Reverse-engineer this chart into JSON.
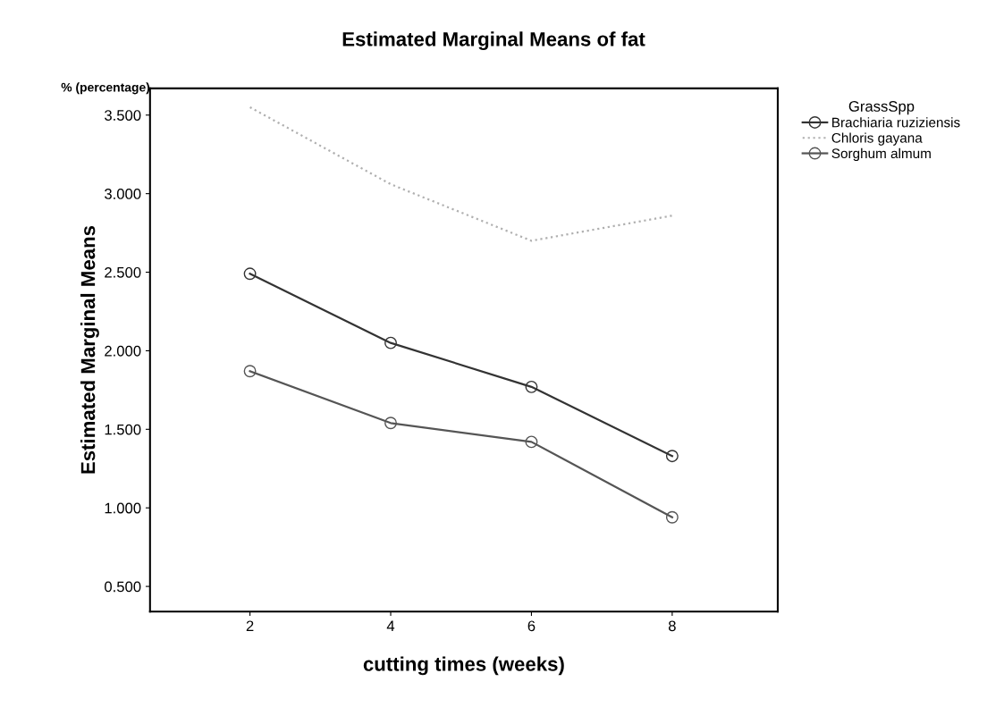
{
  "chart_data": {
    "type": "line",
    "title": "Estimated Marginal Means of fat",
    "xlabel": "cutting times (weeks)",
    "ylabel": "Estimated Marginal Means",
    "legend_title": "GrassSpp",
    "annotations": [
      "% (percentage)"
    ],
    "x": [
      2,
      4,
      6,
      8
    ],
    "series": [
      {
        "name": "Brachiaria ruziziensis",
        "color": "#333333",
        "values": [
          2.49,
          2.05,
          1.77,
          1.33
        ],
        "line_style": "solid",
        "marker": "circle"
      },
      {
        "name": "Chloris gayana",
        "color": "#b0b0b0",
        "values": [
          3.55,
          3.06,
          2.7,
          2.86
        ],
        "line_style": "dotted",
        "marker": "none"
      },
      {
        "name": "Sorghum almum",
        "color": "#555555",
        "values": [
          1.87,
          1.54,
          1.42,
          0.94
        ],
        "line_style": "solid",
        "marker": "circle"
      }
    ],
    "xlim": [
      0.58,
      9.5
    ],
    "xticks": [
      2,
      4,
      6,
      8
    ],
    "ylim": [
      0.34,
      3.67
    ],
    "yticks": [
      {
        "value": 0.5,
        "label": "0.500"
      },
      {
        "value": 1.0,
        "label": "1.000"
      },
      {
        "value": 1.5,
        "label": "1.500"
      },
      {
        "value": 2.0,
        "label": "2.000"
      },
      {
        "value": 2.5,
        "label": "2.500"
      },
      {
        "value": 3.0,
        "label": "3.000"
      },
      {
        "value": 3.5,
        "label": "3.500"
      }
    ],
    "grid": false,
    "legend": "top right"
  }
}
